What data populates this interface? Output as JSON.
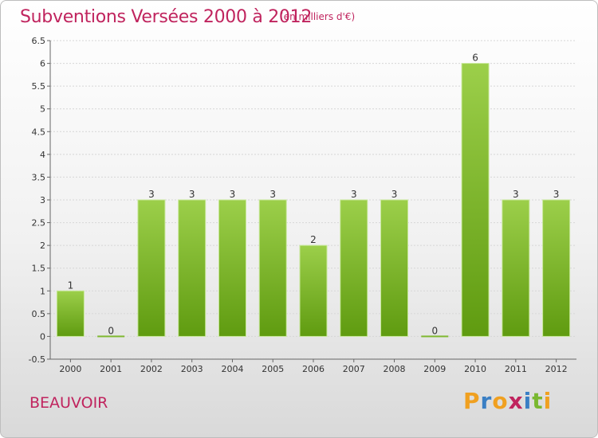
{
  "chart_data": {
    "type": "bar",
    "title": "Subventions Versées 2000 à 2012",
    "subtitle": "(en milliers d'€)",
    "categories": [
      "2000",
      "2001",
      "2002",
      "2003",
      "2004",
      "2005",
      "2006",
      "2007",
      "2008",
      "2009",
      "2010",
      "2011",
      "2012"
    ],
    "values": [
      1,
      0,
      3,
      3,
      3,
      3,
      2,
      3,
      3,
      0,
      6,
      3,
      3
    ],
    "data_labels": [
      "1",
      "0",
      "3",
      "3",
      "3",
      "3",
      "2",
      "3",
      "3",
      "0",
      "6",
      "3",
      "3"
    ],
    "ylim": [
      -0.5,
      6.5
    ],
    "yticks": [
      "-0.5",
      "0",
      "0.5",
      "1",
      "1.5",
      "2",
      "2.5",
      "3",
      "3.5",
      "4",
      "4.5",
      "5",
      "5.5",
      "6",
      "6.5"
    ],
    "grid": true,
    "bar_color_top": "#9ccf4a",
    "bar_color_bottom": "#5f9b10"
  },
  "footer": {
    "commune": "BEAUVOIR",
    "logo": [
      "P",
      "r",
      "o",
      "x",
      "i",
      "t",
      "i"
    ],
    "logo_colors": [
      "#f0a020",
      "#3a7fc4",
      "#f0a020",
      "#c0245e",
      "#3a7fc4",
      "#7ab830",
      "#f0a020"
    ]
  }
}
